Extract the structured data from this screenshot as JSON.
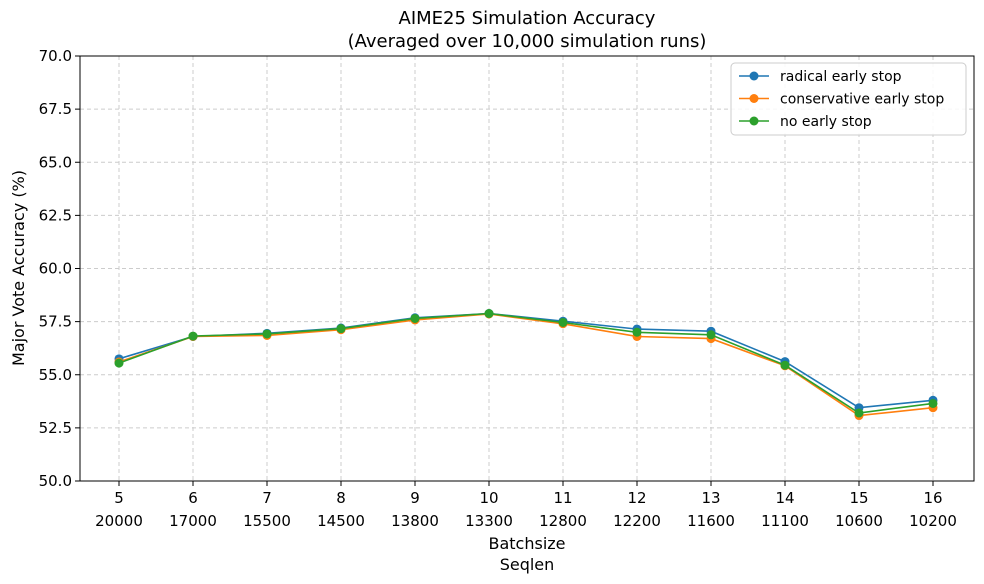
{
  "chart_data": {
    "type": "line",
    "title": "AIME25 Simulation Accuracy",
    "subtitle": "(Averaged over 10,000 simulation runs)",
    "xlabel": "Batchsize",
    "xlabel2": "Seqlen",
    "ylabel": "Major Vote Accuracy (%)",
    "ylim": [
      50,
      70
    ],
    "yticks": [
      "50.0",
      "52.5",
      "55.0",
      "57.5",
      "60.0",
      "62.5",
      "65.0",
      "67.5",
      "70.0"
    ],
    "categories": [
      "5",
      "6",
      "7",
      "8",
      "9",
      "10",
      "11",
      "12",
      "13",
      "14",
      "15",
      "16"
    ],
    "categories2": [
      "20000",
      "17000",
      "15500",
      "14500",
      "13800",
      "13300",
      "12800",
      "12200",
      "11600",
      "11100",
      "10600",
      "10200"
    ],
    "grid": true,
    "legend_position": "top-right",
    "series": [
      {
        "name": "radical early stop",
        "color": "#1f77b4",
        "values": [
          55.75,
          56.8,
          56.95,
          57.2,
          57.68,
          57.88,
          57.52,
          57.15,
          57.05,
          55.62,
          53.45,
          53.8
        ]
      },
      {
        "name": "conservative early stop",
        "color": "#ff7f0e",
        "values": [
          55.6,
          56.8,
          56.85,
          57.12,
          57.58,
          57.86,
          57.4,
          56.8,
          56.7,
          55.42,
          53.08,
          53.45
        ]
      },
      {
        "name": "no early stop",
        "color": "#2ca02c",
        "values": [
          55.55,
          56.82,
          56.92,
          57.17,
          57.65,
          57.88,
          57.46,
          57.0,
          56.88,
          55.45,
          53.2,
          53.65
        ]
      }
    ]
  }
}
